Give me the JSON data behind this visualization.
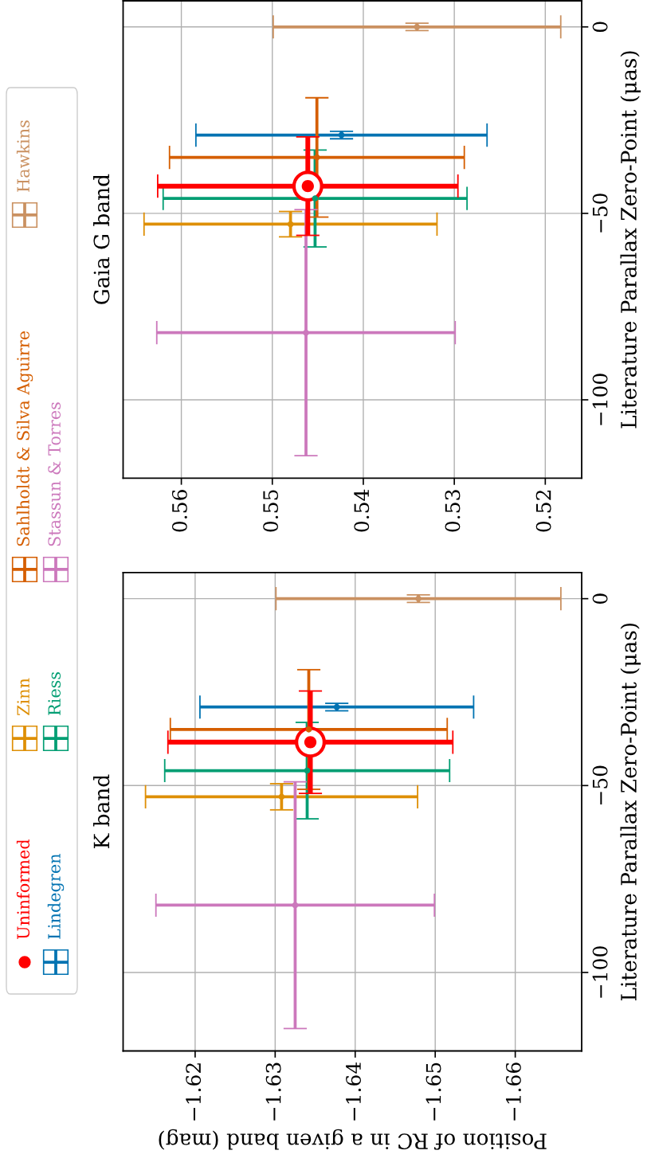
{
  "chart_data": [
    {
      "type": "scatter",
      "title": "K band",
      "ylabel": "Literature Parallax Zero-Point (μas)",
      "xlabel": "Position of RC in a given band (mag)",
      "ylim": [
        -121,
        7
      ],
      "xlim": [
        -1.611,
        -1.6683
      ],
      "yticks": [
        -100,
        -50,
        0
      ],
      "xticks": [
        -1.62,
        -1.63,
        -1.64,
        -1.65,
        -1.66
      ],
      "grid": true,
      "legend": "left",
      "series": [
        {
          "name": "Uninformed",
          "color": "#ff0000",
          "marker": "circle",
          "x": [
            -1.6344
          ],
          "values": [
            -38.4
          ],
          "xerrors": [
            0.0178
          ],
          "errors": [
            13.7
          ]
        },
        {
          "name": "Lindegren",
          "color": "#0173b2",
          "x": [
            -1.6377
          ],
          "values": [
            -29
          ],
          "xerrors": [
            0.0171
          ],
          "errors": [
            1
          ]
        },
        {
          "name": "Zinn",
          "color": "#de8f05",
          "x": [
            -1.6308
          ],
          "values": [
            -53
          ],
          "xerrors": [
            0.017
          ],
          "errors": [
            3.5
          ]
        },
        {
          "name": "Riess",
          "color": "#029e73",
          "x": [
            -1.634
          ],
          "values": [
            -46
          ],
          "xerrors": [
            0.0178
          ],
          "errors": [
            12.9
          ]
        },
        {
          "name": "Sahlholdt & Silva Aguirre",
          "color": "#d55e00",
          "x": [
            -1.6342
          ],
          "values": [
            -35
          ],
          "xerrors": [
            0.0173
          ],
          "errors": [
            16
          ]
        },
        {
          "name": "Stassun & Torres",
          "color": "#cc78bc",
          "x": [
            -1.6325
          ],
          "values": [
            -82
          ],
          "xerrors": [
            0.0174
          ],
          "errors": [
            33
          ]
        },
        {
          "name": "Hawkins",
          "color": "#ca9161",
          "x": [
            -1.6479
          ],
          "values": [
            0
          ],
          "xerrors": [
            0.0178
          ],
          "errors": [
            1
          ]
        }
      ]
    },
    {
      "type": "scatter",
      "title": "Gaia G band",
      "ylabel": "Literature Parallax Zero-Point (μas)",
      "ylim": [
        -121,
        7
      ],
      "xlim": [
        0.5664,
        0.516
      ],
      "yticks": [
        -100,
        -50,
        0
      ],
      "xticks": [
        0.52,
        0.53,
        0.54,
        0.55,
        0.56
      ],
      "grid": true,
      "series": [
        {
          "color": "#ff0000",
          "marker": "circle",
          "x": [
            0.5461
          ],
          "values": [
            -42.7
          ],
          "xerrors": [
            0.0165
          ],
          "errors": [
            13.2
          ]
        },
        {
          "color": "#0173b2",
          "x": [
            0.5424
          ],
          "values": [
            -29
          ],
          "xerrors": [
            0.016
          ],
          "errors": [
            1
          ]
        },
        {
          "color": "#de8f05",
          "x": [
            0.548
          ],
          "values": [
            -52.9
          ],
          "xerrors": [
            0.0161
          ],
          "errors": [
            3.4
          ]
        },
        {
          "color": "#029e73",
          "x": [
            0.5453
          ],
          "values": [
            -46
          ],
          "xerrors": [
            0.0167
          ],
          "errors": [
            13
          ]
        },
        {
          "color": "#d55e00",
          "x": [
            0.5451
          ],
          "values": [
            -35
          ],
          "xerrors": [
            0.0162
          ],
          "errors": [
            16
          ]
        },
        {
          "color": "#cc78bc",
          "x": [
            0.5463
          ],
          "values": [
            -82
          ],
          "xerrors": [
            0.0164
          ],
          "errors": [
            33
          ]
        },
        {
          "color": "#ca9161",
          "x": [
            0.5341
          ],
          "values": [
            0
          ],
          "xerrors": [
            0.0158
          ],
          "errors": [
            1
          ]
        }
      ]
    }
  ]
}
